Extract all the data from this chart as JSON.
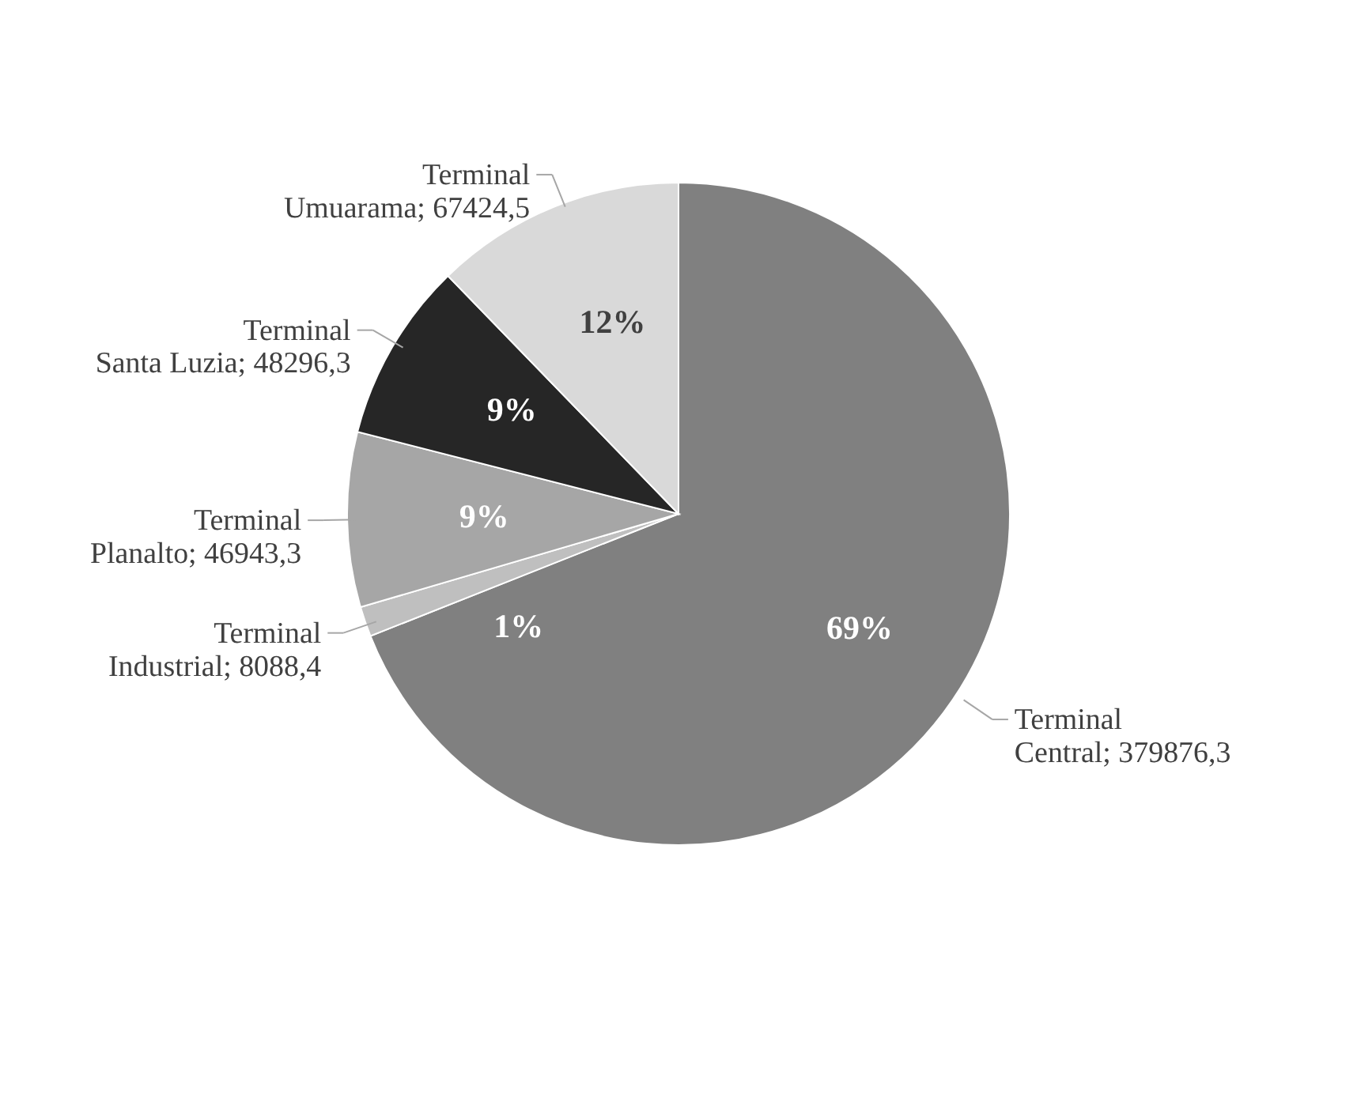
{
  "chart_data": {
    "type": "pie",
    "categories": [
      "Terminal Central",
      "Terminal Industrial",
      "Terminal Planalto",
      "Terminal Santa Luzia",
      "Terminal Umuarama"
    ],
    "values": [
      379876.3,
      8088.4,
      46943.3,
      48296.3,
      67424.5
    ],
    "value_labels": [
      "379876,3",
      "8088,4",
      "46943,3",
      "48296,3",
      "67424,5"
    ],
    "colors": [
      "#808080",
      "#bfbfbf",
      "#a6a6a6",
      "#262626",
      "#d9d9d9"
    ],
    "annotations": [
      {
        "text": "69%",
        "x": "Terminal Central"
      },
      {
        "text": "1%",
        "x": "Terminal Industrial"
      },
      {
        "text": "9%",
        "x": "Terminal Planalto"
      },
      {
        "text": "9%",
        "x": "Terminal Santa Luzia"
      },
      {
        "text": "12%",
        "x": "Terminal Umuarama"
      }
    ]
  }
}
